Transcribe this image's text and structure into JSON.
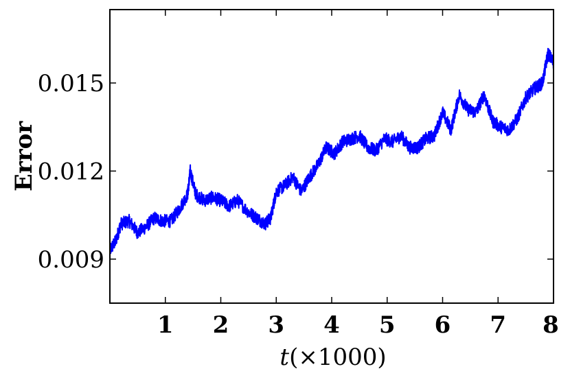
{
  "chart_data": {
    "type": "line",
    "title": "",
    "xlabel_var": "t",
    "xlabel_rest": "(×1000)",
    "ylabel": "Error",
    "xlim": [
      0,
      8
    ],
    "ylim": [
      0.0075,
      0.0175
    ],
    "x_ticks": [
      1,
      2,
      3,
      4,
      5,
      6,
      7,
      8
    ],
    "x_tick_labels": [
      "1",
      "2",
      "3",
      "4",
      "5",
      "6",
      "7",
      "8"
    ],
    "y_ticks": [
      0.009,
      0.012,
      0.015
    ],
    "y_tick_labels": [
      "0.009",
      "0.012",
      "0.015"
    ],
    "grid": false,
    "legend": "none",
    "series": [
      {
        "color": "#0000ff",
        "x": [
          0,
          0.1,
          0.2,
          0.35,
          0.5,
          0.65,
          0.8,
          0.95,
          1.1,
          1.25,
          1.4,
          1.45,
          1.55,
          1.7,
          1.85,
          2.0,
          2.15,
          2.3,
          2.5,
          2.65,
          2.8,
          2.9,
          3.0,
          3.15,
          3.3,
          3.45,
          3.6,
          3.75,
          3.9,
          4.05,
          4.2,
          4.35,
          4.5,
          4.65,
          4.8,
          4.95,
          5.1,
          5.25,
          5.4,
          5.55,
          5.7,
          5.85,
          6.0,
          6.15,
          6.3,
          6.45,
          6.6,
          6.75,
          6.9,
          7.05,
          7.2,
          7.35,
          7.5,
          7.65,
          7.8,
          7.9,
          8.0
        ],
        "y": [
          0.0093,
          0.0096,
          0.0102,
          0.0103,
          0.0099,
          0.0101,
          0.0104,
          0.0103,
          0.0103,
          0.0107,
          0.0112,
          0.012,
          0.0112,
          0.011,
          0.0111,
          0.011,
          0.0108,
          0.011,
          0.0106,
          0.0104,
          0.0102,
          0.0104,
          0.0113,
          0.0115,
          0.0118,
          0.0113,
          0.0118,
          0.0122,
          0.0128,
          0.0126,
          0.013,
          0.0131,
          0.0132,
          0.0128,
          0.0127,
          0.0131,
          0.013,
          0.0132,
          0.0128,
          0.0128,
          0.0131,
          0.0132,
          0.014,
          0.0134,
          0.0146,
          0.0141,
          0.014,
          0.0146,
          0.0137,
          0.0135,
          0.0134,
          0.0138,
          0.0145,
          0.0148,
          0.015,
          0.016,
          0.0157
        ]
      }
    ]
  }
}
